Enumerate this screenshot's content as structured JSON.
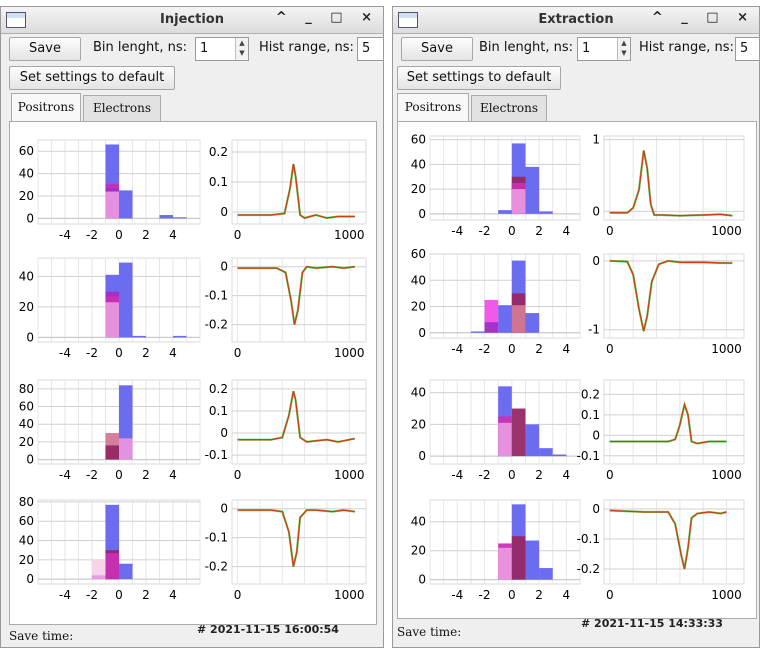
{
  "windows": [
    {
      "title": "Injection",
      "save_label": "Save",
      "bin_label": "Bin lenght, ns:",
      "bin_value": "1",
      "hist_label": "Hist range, ns:",
      "hist_value": "5",
      "default_label": "Set settings to default",
      "tabs": [
        "Positrons",
        "Electrons"
      ],
      "active_tab": 0,
      "timestamp": "# 2021-11-15 16:00:54",
      "save_time_label": "Save time:",
      "window_buttons": "^ _ □ ×"
    },
    {
      "title": "Extraction",
      "save_label": "Save",
      "bin_label": "Bin lenght, ns:",
      "bin_value": "1",
      "hist_label": "Hist range, ns:",
      "hist_value": "5",
      "default_label": "Set settings to default",
      "tabs": [
        "Positrons",
        "Electrons"
      ],
      "active_tab": 0,
      "timestamp": "# 2021-11-15 14:33:33",
      "save_time_label": "Save time:",
      "window_buttons": "^ _ □ ×"
    }
  ],
  "colors": {
    "blue": "#6464f0",
    "magenta": "#c830b4",
    "pink": "#e896e0",
    "violet": "#a030c8",
    "maroon": "#962864",
    "rose": "#d27896",
    "lightpink": "#f5d2e6",
    "fuchsia": "#f050e8",
    "trace": "#d23c14",
    "noise": "#28c828"
  },
  "chart_data": [
    {
      "window": "Injection",
      "type": "bar",
      "xlim": [
        -6,
        6
      ],
      "ylim": [
        -5,
        70
      ],
      "yticks": [
        0,
        20,
        40,
        60
      ],
      "xticks": [
        -4,
        -2,
        0,
        2,
        4
      ],
      "bars": [
        {
          "x0": -1,
          "x1": 0,
          "y0": 0,
          "y1": 66,
          "color": "blue"
        },
        {
          "x0": 0,
          "x1": 1,
          "y0": 0,
          "y1": 25,
          "color": "blue"
        },
        {
          "x0": 3,
          "x1": 4,
          "y0": 0,
          "y1": 3,
          "color": "blue"
        },
        {
          "x0": 4,
          "x1": 5,
          "y0": 0,
          "y1": 1,
          "color": "blue"
        },
        {
          "x0": -1,
          "x1": 0,
          "y0": 0,
          "y1": 31,
          "color": "magenta"
        },
        {
          "x0": -1,
          "x1": 0,
          "y0": 0,
          "y1": 27,
          "color": "violet"
        },
        {
          "x0": -1,
          "x1": 0,
          "y0": 0,
          "y1": 24,
          "color": "pink"
        }
      ]
    },
    {
      "window": "Injection",
      "type": "line",
      "xlim": [
        -50,
        1150
      ],
      "ylim": [
        -0.04,
        0.24
      ],
      "yticks": [
        0,
        0.1,
        0.2
      ],
      "xticks": [
        0,
        1000
      ],
      "trace": [
        [
          0,
          -0.01
        ],
        [
          300,
          -0.01
        ],
        [
          420,
          -0.005
        ],
        [
          470,
          0.08
        ],
        [
          500,
          0.16
        ],
        [
          520,
          0.12
        ],
        [
          560,
          -0.01
        ],
        [
          600,
          -0.02
        ],
        [
          650,
          -0.015
        ],
        [
          700,
          -0.01
        ],
        [
          800,
          -0.02
        ],
        [
          900,
          -0.015
        ],
        [
          1050,
          -0.015
        ]
      ]
    },
    {
      "window": "Injection",
      "type": "bar",
      "xlim": [
        -6,
        6
      ],
      "ylim": [
        -3,
        52
      ],
      "yticks": [
        0,
        20,
        40
      ],
      "xticks": [
        -4,
        -2,
        0,
        2,
        4
      ],
      "bars": [
        {
          "x0": -1,
          "x1": 0,
          "y0": 0,
          "y1": 41,
          "color": "blue"
        },
        {
          "x0": 0,
          "x1": 1,
          "y0": 0,
          "y1": 49,
          "color": "blue"
        },
        {
          "x0": 1,
          "x1": 2,
          "y0": 0,
          "y1": 1,
          "color": "blue"
        },
        {
          "x0": 4,
          "x1": 5,
          "y0": 0,
          "y1": 1,
          "color": "blue"
        },
        {
          "x0": -1,
          "x1": 0,
          "y0": 0,
          "y1": 30,
          "color": "violet"
        },
        {
          "x0": -1,
          "x1": 0,
          "y0": 0,
          "y1": 27,
          "color": "magenta"
        },
        {
          "x0": -1,
          "x1": 0,
          "y0": 0,
          "y1": 23,
          "color": "pink"
        }
      ]
    },
    {
      "window": "Injection",
      "type": "line",
      "xlim": [
        -50,
        1150
      ],
      "ylim": [
        -0.26,
        0.03
      ],
      "yticks": [
        0,
        -0.1,
        -0.2
      ],
      "xticks": [
        0,
        1000
      ],
      "trace": [
        [
          0,
          -0.005
        ],
        [
          350,
          -0.005
        ],
        [
          430,
          -0.02
        ],
        [
          480,
          -0.12
        ],
        [
          510,
          -0.2
        ],
        [
          540,
          -0.15
        ],
        [
          580,
          -0.02
        ],
        [
          620,
          0
        ],
        [
          700,
          -0.005
        ],
        [
          850,
          0
        ],
        [
          950,
          -0.005
        ],
        [
          1050,
          0
        ]
      ]
    },
    {
      "window": "Injection",
      "type": "bar",
      "xlim": [
        -6,
        6
      ],
      "ylim": [
        -5,
        90
      ],
      "yticks": [
        0,
        20,
        40,
        60,
        80
      ],
      "xticks": [
        -4,
        -2,
        0,
        2,
        4
      ],
      "bars": [
        {
          "x0": 0,
          "x1": 1,
          "y0": 0,
          "y1": 84,
          "color": "blue"
        },
        {
          "x0": -1,
          "x1": 0,
          "y0": 0,
          "y1": 30,
          "color": "rose"
        },
        {
          "x0": 0,
          "x1": 1,
          "y0": 0,
          "y1": 24,
          "color": "pink"
        },
        {
          "x0": -1,
          "x1": 0,
          "y0": 0,
          "y1": 16,
          "color": "maroon"
        }
      ]
    },
    {
      "window": "Injection",
      "type": "line",
      "xlim": [
        -50,
        1150
      ],
      "ylim": [
        -0.14,
        0.24
      ],
      "yticks": [
        0.2,
        0.1,
        0,
        -0.1
      ],
      "xticks": [
        0,
        1000
      ],
      "trace": [
        [
          0,
          -0.03
        ],
        [
          300,
          -0.03
        ],
        [
          400,
          -0.02
        ],
        [
          460,
          0.08
        ],
        [
          500,
          0.19
        ],
        [
          520,
          0.15
        ],
        [
          560,
          -0.02
        ],
        [
          620,
          -0.04
        ],
        [
          700,
          -0.035
        ],
        [
          800,
          -0.03
        ],
        [
          900,
          -0.04
        ],
        [
          1050,
          -0.025
        ]
      ]
    },
    {
      "window": "Injection",
      "type": "bar",
      "xlim": [
        -6,
        6
      ],
      "ylim": [
        -5,
        82
      ],
      "yticks": [
        0,
        20,
        40,
        60,
        80
      ],
      "xticks": [
        -4,
        -2,
        0,
        2,
        4
      ],
      "bars": [
        {
          "x0": -1,
          "x1": 0,
          "y0": 0,
          "y1": 77,
          "color": "blue"
        },
        {
          "x0": 0,
          "x1": 1,
          "y0": 0,
          "y1": 16,
          "color": "blue"
        },
        {
          "x0": -2,
          "x1": -1,
          "y0": 0,
          "y1": 20,
          "color": "lightpink"
        },
        {
          "x0": -1,
          "x1": 0,
          "y0": 0,
          "y1": 30,
          "color": "maroon"
        },
        {
          "x0": -1,
          "x1": 0,
          "y0": 0,
          "y1": 27,
          "color": "magenta"
        },
        {
          "x0": -2,
          "x1": -1,
          "y0": 0,
          "y1": 4,
          "color": "pink"
        }
      ]
    },
    {
      "window": "Injection",
      "type": "line",
      "xlim": [
        -50,
        1150
      ],
      "ylim": [
        -0.26,
        0.03
      ],
      "yticks": [
        0,
        -0.1,
        -0.2
      ],
      "xticks": [
        0,
        1000
      ],
      "trace": [
        [
          0,
          -0.005
        ],
        [
          300,
          -0.005
        ],
        [
          400,
          -0.01
        ],
        [
          460,
          -0.08
        ],
        [
          500,
          -0.2
        ],
        [
          530,
          -0.15
        ],
        [
          560,
          -0.03
        ],
        [
          620,
          -0.005
        ],
        [
          700,
          -0.005
        ],
        [
          850,
          -0.01
        ],
        [
          950,
          -0.005
        ],
        [
          1050,
          -0.01
        ]
      ]
    },
    {
      "window": "Extraction",
      "type": "bar",
      "xlim": [
        -6,
        5
      ],
      "ylim": [
        -5,
        63
      ],
      "yticks": [
        0,
        20,
        40,
        60
      ],
      "xticks": [
        -4,
        -2,
        0,
        2,
        4
      ],
      "bars": [
        {
          "x0": 0,
          "x1": 1,
          "y0": 0,
          "y1": 57,
          "color": "blue"
        },
        {
          "x0": 1,
          "x1": 2,
          "y0": 0,
          "y1": 38,
          "color": "blue"
        },
        {
          "x0": 2,
          "x1": 3,
          "y0": 0,
          "y1": 2,
          "color": "blue"
        },
        {
          "x0": -1,
          "x1": 0,
          "y0": 0,
          "y1": 3,
          "color": "blue"
        },
        {
          "x0": 0,
          "x1": 1,
          "y0": 0,
          "y1": 30,
          "color": "maroon"
        },
        {
          "x0": 0,
          "x1": 1,
          "y0": 0,
          "y1": 25,
          "color": "magenta"
        },
        {
          "x0": 0,
          "x1": 1,
          "y0": 0,
          "y1": 20,
          "color": "pink"
        }
      ]
    },
    {
      "window": "Extraction",
      "type": "line",
      "xlim": [
        -50,
        1150
      ],
      "ylim": [
        -0.12,
        1.05
      ],
      "yticks": [
        1,
        0
      ],
      "xticks": [
        0,
        1000
      ],
      "trace": [
        [
          0,
          -0.02
        ],
        [
          150,
          -0.02
        ],
        [
          200,
          0.05
        ],
        [
          250,
          0.3
        ],
        [
          290,
          0.85
        ],
        [
          320,
          0.6
        ],
        [
          350,
          0.1
        ],
        [
          380,
          -0.05
        ],
        [
          450,
          -0.05
        ],
        [
          600,
          -0.06
        ],
        [
          800,
          -0.05
        ],
        [
          950,
          -0.04
        ],
        [
          1050,
          -0.06
        ]
      ]
    },
    {
      "window": "Extraction",
      "type": "bar",
      "xlim": [
        -6,
        5
      ],
      "ylim": [
        -4,
        60
      ],
      "yticks": [
        0,
        20,
        40,
        60
      ],
      "xticks": [
        -4,
        -2,
        0,
        2,
        4
      ],
      "bars": [
        {
          "x0": 0,
          "x1": 1,
          "y0": 0,
          "y1": 55,
          "color": "blue"
        },
        {
          "x0": -1,
          "x1": 0,
          "y0": 0,
          "y1": 21,
          "color": "blue"
        },
        {
          "x0": -3,
          "x1": -2,
          "y0": 0,
          "y1": 1,
          "color": "blue"
        },
        {
          "x0": 1,
          "x1": 2,
          "y0": 0,
          "y1": 15,
          "color": "blue"
        },
        {
          "x0": -2,
          "x1": -1,
          "y0": 0,
          "y1": 25,
          "color": "fuchsia"
        },
        {
          "x0": 0,
          "x1": 1,
          "y0": 0,
          "y1": 30,
          "color": "maroon"
        },
        {
          "x0": 0,
          "x1": 1,
          "y0": 0,
          "y1": 21,
          "color": "rose"
        },
        {
          "x0": -2,
          "x1": -1,
          "y0": 0,
          "y1": 8,
          "color": "violet"
        }
      ]
    },
    {
      "window": "Extraction",
      "type": "line",
      "xlim": [
        -50,
        1150
      ],
      "ylim": [
        -1.12,
        0.1
      ],
      "yticks": [
        0,
        -1
      ],
      "xticks": [
        0,
        1000
      ],
      "trace": [
        [
          0,
          0
        ],
        [
          150,
          -0.01
        ],
        [
          200,
          -0.2
        ],
        [
          250,
          -0.7
        ],
        [
          290,
          -1.02
        ],
        [
          320,
          -0.8
        ],
        [
          360,
          -0.3
        ],
        [
          420,
          -0.05
        ],
        [
          500,
          0
        ],
        [
          600,
          -0.02
        ],
        [
          800,
          -0.02
        ],
        [
          950,
          -0.03
        ],
        [
          1050,
          -0.03
        ]
      ]
    },
    {
      "window": "Extraction",
      "type": "bar",
      "xlim": [
        -6,
        5
      ],
      "ylim": [
        -5,
        48
      ],
      "yticks": [
        0,
        20,
        40
      ],
      "xticks": [
        -4,
        -2,
        0,
        2,
        4
      ],
      "bars": [
        {
          "x0": -1,
          "x1": 0,
          "y0": 0,
          "y1": 44,
          "color": "blue"
        },
        {
          "x0": 1,
          "x1": 2,
          "y0": 0,
          "y1": 20,
          "color": "blue"
        },
        {
          "x0": 2,
          "x1": 3,
          "y0": 0,
          "y1": 5,
          "color": "blue"
        },
        {
          "x0": 3,
          "x1": 4,
          "y0": 0,
          "y1": 1,
          "color": "blue"
        },
        {
          "x0": -1,
          "x1": 0,
          "y0": 0,
          "y1": 25,
          "color": "magenta"
        },
        {
          "x0": -1,
          "x1": 0,
          "y0": 0,
          "y1": 21,
          "color": "pink"
        },
        {
          "x0": 0,
          "x1": 1,
          "y0": 0,
          "y1": 30,
          "color": "maroon"
        }
      ]
    },
    {
      "window": "Extraction",
      "type": "line",
      "xlim": [
        -50,
        1150
      ],
      "ylim": [
        -0.14,
        0.27
      ],
      "yticks": [
        0.2,
        0.1,
        0,
        -0.1
      ],
      "xticks": [
        0,
        1000
      ],
      "trace": [
        [
          0,
          -0.03
        ],
        [
          300,
          -0.03
        ],
        [
          500,
          -0.03
        ],
        [
          560,
          -0.02
        ],
        [
          600,
          0.05
        ],
        [
          640,
          0.15
        ],
        [
          670,
          0.1
        ],
        [
          700,
          -0.03
        ],
        [
          750,
          -0.04
        ],
        [
          850,
          -0.03
        ],
        [
          950,
          -0.03
        ],
        [
          1000,
          -0.03
        ]
      ]
    },
    {
      "window": "Extraction",
      "type": "bar",
      "xlim": [
        -6,
        5
      ],
      "ylim": [
        -3,
        55
      ],
      "yticks": [
        0,
        20,
        40
      ],
      "xticks": [
        -4,
        -2,
        0,
        2,
        4
      ],
      "bars": [
        {
          "x0": 0,
          "x1": 1,
          "y0": 0,
          "y1": 52,
          "color": "blue"
        },
        {
          "x0": 1,
          "x1": 2,
          "y0": 0,
          "y1": 27,
          "color": "blue"
        },
        {
          "x0": 2,
          "x1": 3,
          "y0": 0,
          "y1": 8,
          "color": "blue"
        },
        {
          "x0": -1,
          "x1": 0,
          "y0": 0,
          "y1": 25,
          "color": "magenta"
        },
        {
          "x0": -1,
          "x1": 0,
          "y0": 0,
          "y1": 22,
          "color": "pink"
        },
        {
          "x0": 0,
          "x1": 1,
          "y0": 0,
          "y1": 30,
          "color": "maroon"
        }
      ]
    },
    {
      "window": "Extraction",
      "type": "line",
      "xlim": [
        -50,
        1150
      ],
      "ylim": [
        -0.25,
        0.03
      ],
      "yticks": [
        0,
        -0.1,
        -0.2
      ],
      "xticks": [
        0,
        1000
      ],
      "trace": [
        [
          0,
          -0.005
        ],
        [
          300,
          -0.01
        ],
        [
          500,
          -0.01
        ],
        [
          560,
          -0.05
        ],
        [
          610,
          -0.15
        ],
        [
          640,
          -0.2
        ],
        [
          670,
          -0.13
        ],
        [
          700,
          -0.03
        ],
        [
          750,
          -0.015
        ],
        [
          850,
          -0.01
        ],
        [
          950,
          -0.015
        ],
        [
          1000,
          -0.01
        ]
      ]
    }
  ]
}
